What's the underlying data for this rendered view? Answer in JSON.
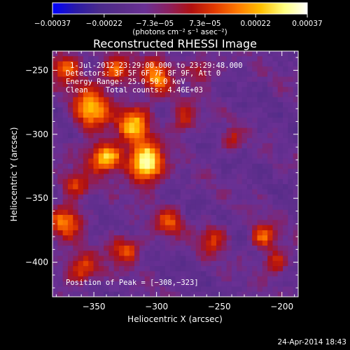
{
  "chart_data": {
    "type": "heatmap",
    "title": "Reconstructed RHESSI Image",
    "xlabel": "Heliocentric X (arcsec)",
    "ylabel": "Heliocentric Y (arcsec)",
    "xlim": [
      -383,
      -187
    ],
    "ylim": [
      -427,
      -235
    ],
    "x_ticks": [
      -350,
      -300,
      -250,
      -200
    ],
    "y_ticks": [
      -250,
      -300,
      -350,
      -400
    ],
    "x_tick_labels": [
      "−350",
      "−300",
      "−250",
      "−200"
    ],
    "y_tick_labels": [
      "−250",
      "−300",
      "−350",
      "−400"
    ],
    "colorbar": {
      "range": [
        -0.00037,
        0.00037
      ],
      "ticks": [
        -0.00037,
        -0.00022,
        -7.3e-05,
        7.3e-05,
        0.00022,
        0.00037
      ],
      "tick_labels": [
        "−0.00037",
        "−0.00022",
        "−7.3e−05",
        "7.3e−05",
        "0.00022",
        "0.00037"
      ],
      "label": "(photons cm⁻² s⁻¹ asec⁻²)",
      "colors": [
        "#0000ff",
        "#2a1aa8",
        "#4a2a8c",
        "#5a2d8a",
        "#6a3094",
        "#8a2060",
        "#b01010",
        "#e23a00",
        "#ff7a00",
        "#ffc000",
        "#ffff80",
        "#ffffff"
      ]
    },
    "annotations": {
      "time": "1-Jul-2012 23:29:00.000 to 23:29:48.000",
      "detectors": "Detectors: 3F 5F 6F 7F 8F 9F, Att 0",
      "energy": "Energy Range: 25.0-50.0 keV",
      "method": "Clean    Total counts: 4.46E+03",
      "peak": "Position of Peak = [−308,−323]"
    },
    "peak": {
      "x": -308,
      "y": -323
    },
    "sources": [
      {
        "x": -308,
        "y": -323,
        "amp": 1.0,
        "sx": 9,
        "sy": 11
      },
      {
        "x": -340,
        "y": -318,
        "amp": 0.82,
        "sx": 10,
        "sy": 8
      },
      {
        "x": -352,
        "y": -280,
        "amp": 0.72,
        "sx": 10,
        "sy": 12
      },
      {
        "x": -318,
        "y": -292,
        "amp": 0.72,
        "sx": 9,
        "sy": 10
      },
      {
        "x": -300,
        "y": -255,
        "amp": 0.62,
        "sx": 8,
        "sy": 10
      },
      {
        "x": -332,
        "y": -250,
        "amp": 0.55,
        "sx": 9,
        "sy": 8
      },
      {
        "x": -278,
        "y": -288,
        "amp": 0.42,
        "sx": 7,
        "sy": 9
      },
      {
        "x": -372,
        "y": -248,
        "amp": 0.5,
        "sx": 9,
        "sy": 9
      },
      {
        "x": -372,
        "y": -368,
        "amp": 0.58,
        "sx": 9,
        "sy": 9
      },
      {
        "x": -360,
        "y": -405,
        "amp": 0.5,
        "sx": 10,
        "sy": 8
      },
      {
        "x": -325,
        "y": -390,
        "amp": 0.5,
        "sx": 9,
        "sy": 8
      },
      {
        "x": -290,
        "y": -368,
        "amp": 0.45,
        "sx": 8,
        "sy": 8
      },
      {
        "x": -255,
        "y": -382,
        "amp": 0.42,
        "sx": 8,
        "sy": 8
      },
      {
        "x": -215,
        "y": -380,
        "amp": 0.55,
        "sx": 7,
        "sy": 7
      },
      {
        "x": -205,
        "y": -400,
        "amp": 0.42,
        "sx": 7,
        "sy": 7
      },
      {
        "x": -265,
        "y": -250,
        "amp": 0.38,
        "sx": 8,
        "sy": 7
      },
      {
        "x": -240,
        "y": -305,
        "amp": 0.35,
        "sx": 6,
        "sy": 6
      },
      {
        "x": -365,
        "y": -340,
        "amp": 0.45,
        "sx": 8,
        "sy": 7
      }
    ],
    "grid": false
  },
  "footer": {
    "timestamp": "24-Apr-2014 18:43"
  }
}
